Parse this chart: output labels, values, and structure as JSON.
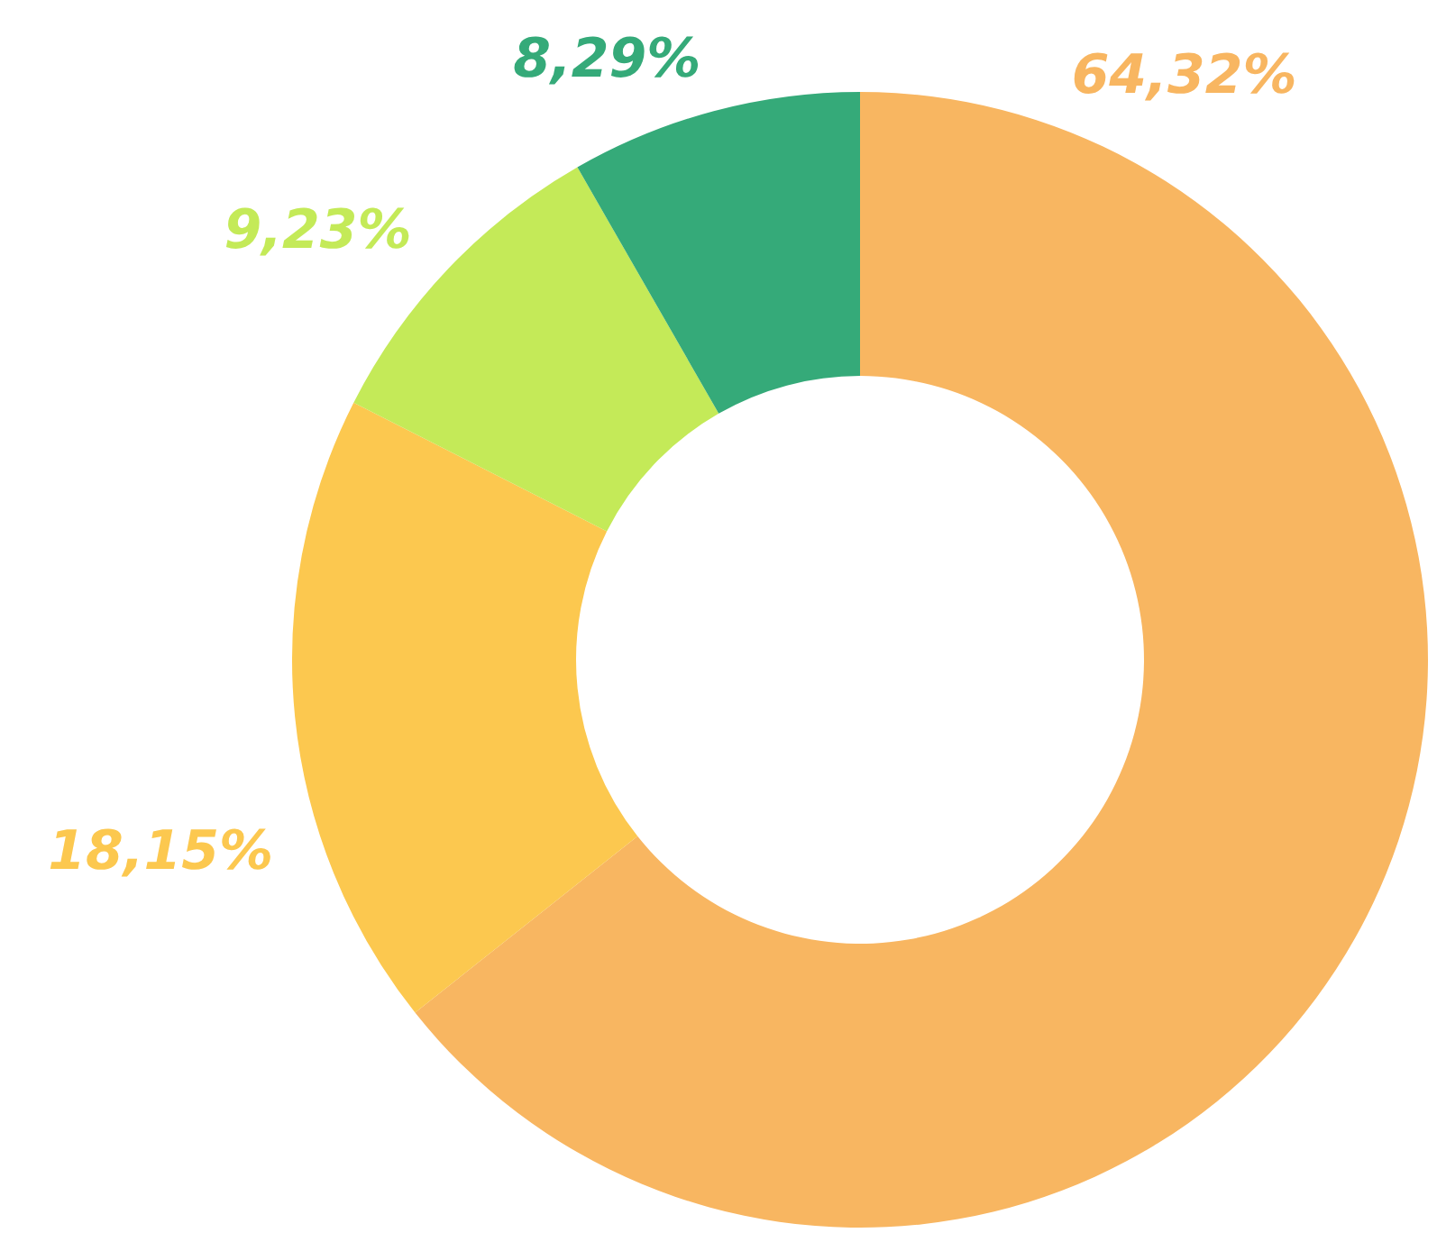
{
  "chart_data": {
    "type": "donut",
    "categories": [
      null,
      null,
      null,
      null
    ],
    "values": [
      64.32,
      18.15,
      9.23,
      8.29
    ],
    "colors": [
      "#f8b661",
      "#fcc84f",
      "#c4ea58",
      "#35aa79"
    ],
    "value_labels": [
      "64,32%",
      "18,15%",
      "9,23%",
      "8,29%"
    ],
    "legend": false
  }
}
